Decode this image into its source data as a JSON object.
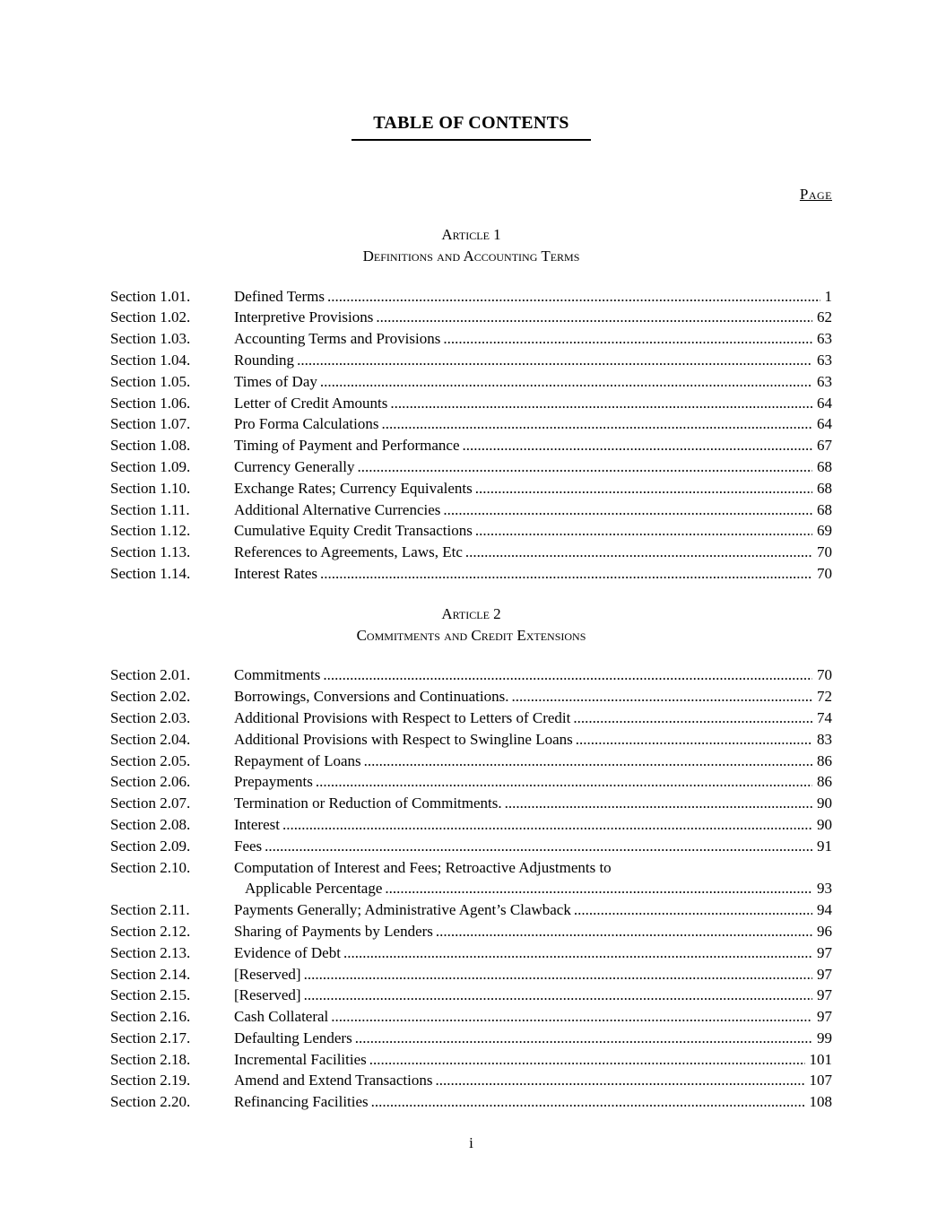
{
  "toc": {
    "title": "TABLE OF CONTENTS",
    "page_column_label": "Page",
    "footer_page_number": "i",
    "articles": [
      {
        "name": "Article 1",
        "subtitle": "Definitions and Accounting Terms",
        "entries": [
          {
            "label": "Section 1.01.",
            "title": "Defined Terms",
            "page": "1"
          },
          {
            "label": "Section 1.02.",
            "title": "Interpretive Provisions",
            "page": "62"
          },
          {
            "label": "Section 1.03.",
            "title": "Accounting Terms and Provisions",
            "page": "63"
          },
          {
            "label": "Section 1.04.",
            "title": "Rounding",
            "page": "63"
          },
          {
            "label": "Section 1.05.",
            "title": "Times of Day",
            "page": "63"
          },
          {
            "label": "Section 1.06.",
            "title": "Letter of Credit Amounts",
            "page": "64"
          },
          {
            "label": "Section 1.07.",
            "title": "Pro Forma Calculations",
            "page": "64"
          },
          {
            "label": "Section 1.08.",
            "title": "Timing of Payment and Performance",
            "page": "67"
          },
          {
            "label": "Section 1.09.",
            "title": "Currency Generally",
            "page": "68"
          },
          {
            "label": "Section 1.10.",
            "title": "Exchange Rates; Currency Equivalents",
            "page": "68"
          },
          {
            "label": "Section 1.11.",
            "title": "Additional Alternative Currencies",
            "page": "68"
          },
          {
            "label": "Section 1.12.",
            "title": "Cumulative Equity Credit Transactions",
            "page": "69"
          },
          {
            "label": "Section 1.13.",
            "title": "References to Agreements, Laws, Etc",
            "page": "70"
          },
          {
            "label": "Section 1.14.",
            "title": "Interest Rates",
            "page": "70"
          }
        ]
      },
      {
        "name": "Article 2",
        "subtitle": "Commitments and Credit Extensions",
        "entries": [
          {
            "label": "Section 2.01.",
            "title": "Commitments",
            "page": "70"
          },
          {
            "label": "Section 2.02.",
            "title": "Borrowings, Conversions and Continuations.",
            "page": "72"
          },
          {
            "label": "Section 2.03.",
            "title": "Additional Provisions with Respect to Letters of Credit",
            "page": "74"
          },
          {
            "label": "Section 2.04.",
            "title": "Additional Provisions with Respect to Swingline Loans",
            "page": "83"
          },
          {
            "label": "Section 2.05.",
            "title": "Repayment of Loans",
            "page": "86"
          },
          {
            "label": "Section 2.06.",
            "title": "Prepayments",
            "page": "86"
          },
          {
            "label": "Section 2.07.",
            "title": "Termination or Reduction of Commitments.",
            "page": "90"
          },
          {
            "label": "Section 2.08.",
            "title": "Interest",
            "page": "90"
          },
          {
            "label": "Section 2.09.",
            "title": "Fees",
            "page": "91"
          },
          {
            "label": "Section 2.10.",
            "title": "Computation of Interest and Fees; Retroactive Adjustments to",
            "title2": "Applicable Percentage",
            "page": "93"
          },
          {
            "label": "Section 2.11.",
            "title": "Payments Generally; Administrative Agent’s Clawback",
            "page": "94"
          },
          {
            "label": "Section 2.12.",
            "title": "Sharing of Payments by Lenders",
            "page": "96"
          },
          {
            "label": "Section 2.13.",
            "title": "Evidence of Debt",
            "page": "97"
          },
          {
            "label": "Section 2.14.",
            "title": "[Reserved]",
            "page": "97"
          },
          {
            "label": "Section 2.15.",
            "title": "[Reserved]",
            "page": "97"
          },
          {
            "label": "Section 2.16.",
            "title": "Cash Collateral",
            "page": "97"
          },
          {
            "label": "Section 2.17.",
            "title": "Defaulting Lenders",
            "page": "99"
          },
          {
            "label": "Section 2.18.",
            "title": "Incremental Facilities",
            "page": "101"
          },
          {
            "label": "Section 2.19.",
            "title": "Amend and Extend Transactions",
            "page": "107"
          },
          {
            "label": "Section 2.20.",
            "title": "Refinancing Facilities",
            "page": "108"
          }
        ]
      }
    ]
  }
}
